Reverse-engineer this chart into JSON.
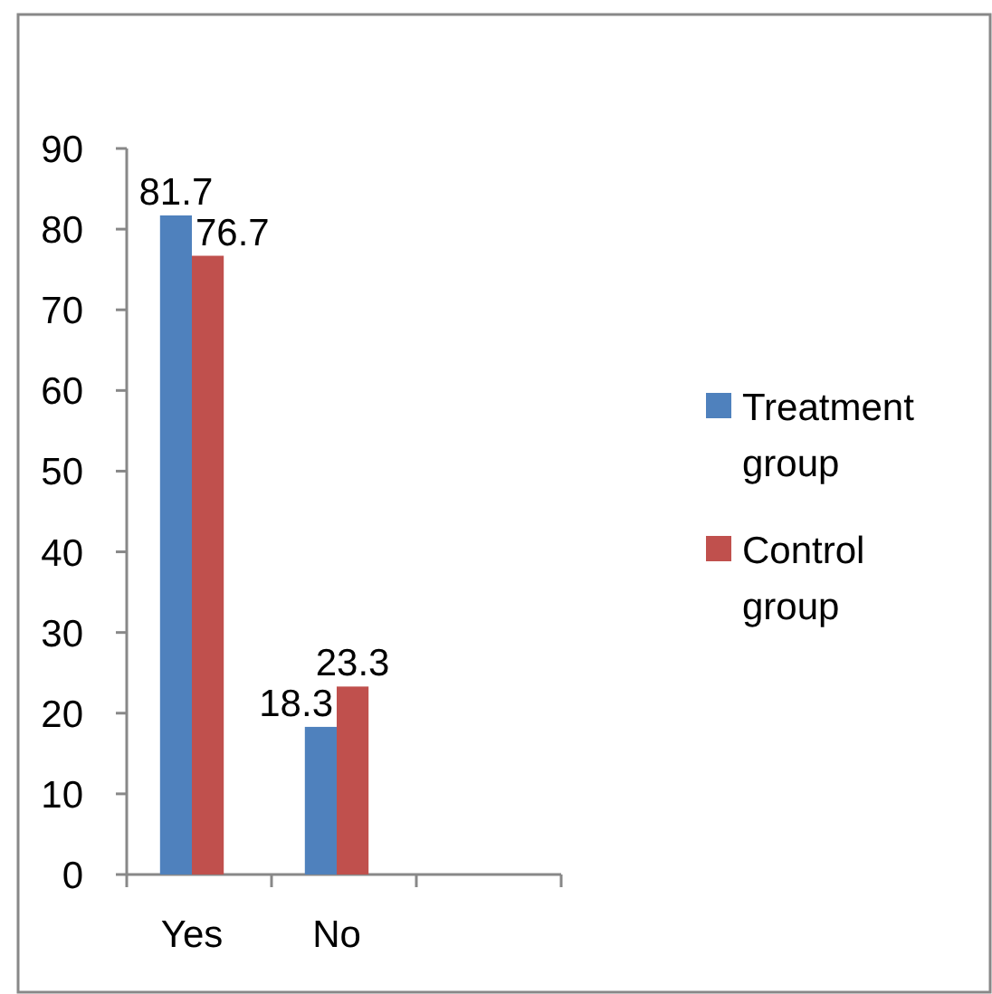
{
  "chart_data": {
    "type": "bar",
    "categories": [
      "Yes",
      "No",
      null
    ],
    "series": [
      {
        "name": "Treatment group",
        "color": "#4f81bd",
        "values": [
          81.7,
          18.3,
          null
        ]
      },
      {
        "name": "Control group",
        "color": "#c0504d",
        "values": [
          76.7,
          23.3,
          null
        ]
      }
    ],
    "ylim": [
      0,
      90
    ],
    "yticks": [
      0,
      10,
      20,
      30,
      40,
      50,
      60,
      70,
      80,
      90
    ],
    "legend": "right",
    "data_labels": true
  }
}
